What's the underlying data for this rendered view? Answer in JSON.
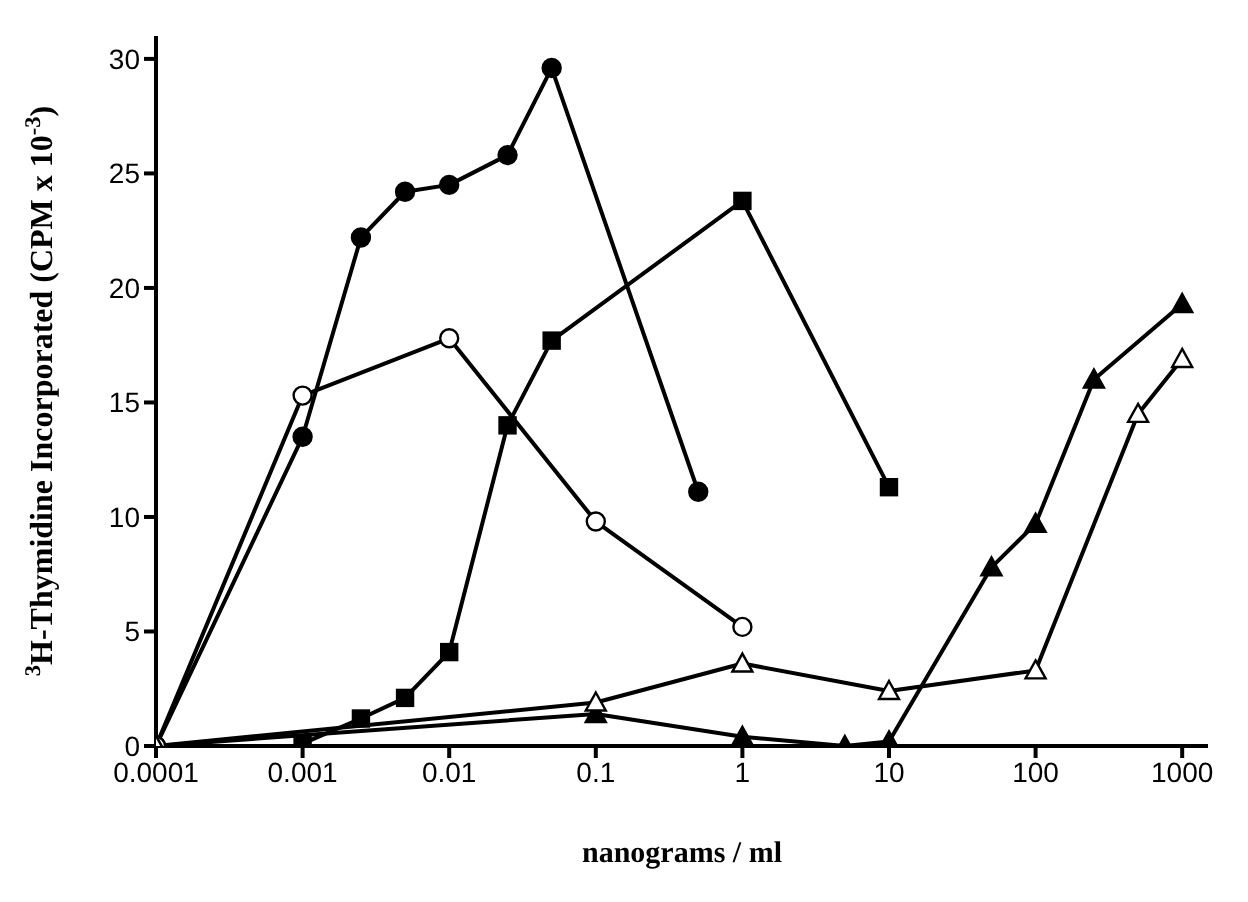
{
  "chart_data": {
    "type": "line",
    "xlabel": "nanograms / ml",
    "ylabel": "$^{3}$H-Thymidine Incorporated (CPM x 10$^{-3}$)",
    "log": "x",
    "xlim": [
      0.0001,
      1500
    ],
    "xticks": [
      0.0001,
      0.001,
      0.01,
      0.1,
      1,
      10,
      100,
      1000
    ],
    "ylim": [
      0,
      31
    ],
    "yticks": [
      0,
      5,
      10,
      15,
      20,
      25,
      30
    ],
    "line_style": "solid",
    "series": [
      {
        "color": "#000000",
        "marker": "circle",
        "x": [
          0.0001,
          0.001,
          0.0025,
          0.005,
          0.01,
          0.025,
          0.05,
          0.5
        ],
        "values": [
          0,
          13.5,
          22.2,
          24.2,
          24.5,
          25.8,
          29.6,
          11.1
        ]
      },
      {
        "color": "#000000",
        "marker": "circle",
        "colors": [
          "#ffffff",
          "#ffffff",
          "#ffffff",
          "#ffffff",
          "#ffffff"
        ],
        "x": [
          0.0001,
          0.001,
          0.01,
          0.1,
          1
        ],
        "values": [
          0,
          15.3,
          17.8,
          9.8,
          5.2
        ]
      },
      {
        "color": "#000000",
        "marker": "square",
        "x": [
          0.001,
          0.0025,
          0.005,
          0.01,
          0.025,
          0.05,
          1,
          10
        ],
        "values": [
          0.1,
          1.2,
          2.1,
          4.1,
          14,
          17.7,
          23.8,
          11.3
        ]
      },
      {
        "color": "#000000",
        "marker": "triangle",
        "x": [
          0.0001,
          0.1,
          1,
          5,
          10,
          50,
          100,
          250,
          1000
        ],
        "values": [
          0,
          1.4,
          0.4,
          0,
          0.2,
          7.8,
          9.7,
          16,
          19.3
        ]
      },
      {
        "color": "#000000",
        "marker": "triangle",
        "colors": [
          "#ffffff",
          "#ffffff",
          "#ffffff",
          "#ffffff",
          "#ffffff",
          "#ffffff",
          "#ffffff"
        ],
        "x": [
          0.0001,
          0.1,
          1,
          10,
          100,
          500,
          1000
        ],
        "values": [
          0,
          1.9,
          3.6,
          2.4,
          3.3,
          14.5,
          16.9
        ]
      }
    ]
  }
}
